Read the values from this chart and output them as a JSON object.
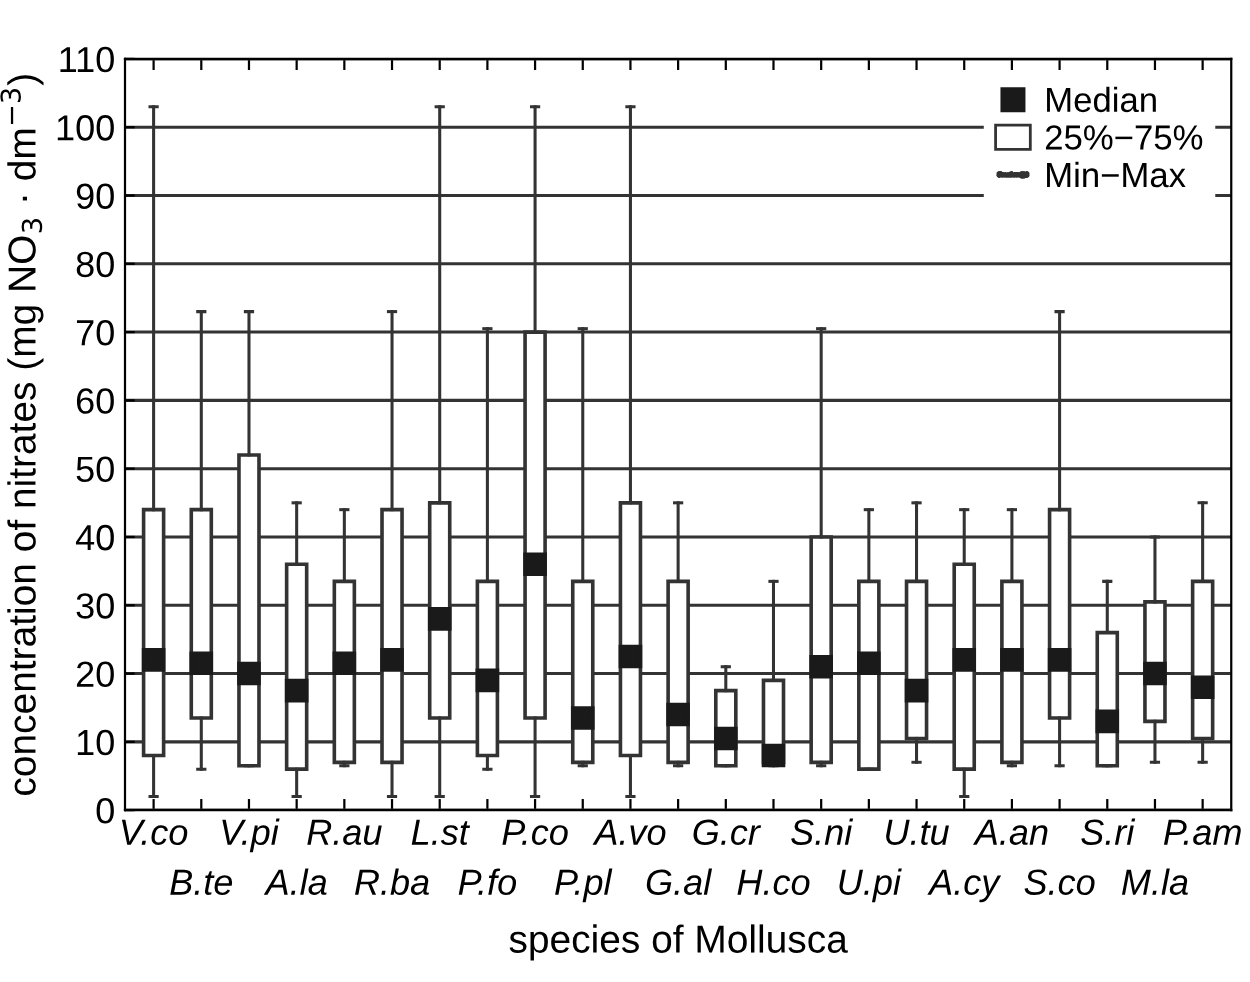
{
  "chart_data": {
    "type": "box",
    "xlabel": "species of Mollusca",
    "ylabel": "concentration of nitrates (mg NO$_{3}$ · dm$^{−3}$)",
    "categories": [
      "V.co",
      "B.te",
      "V.pi",
      "A.la",
      "R.au",
      "R.ba",
      "L.st",
      "P.fo",
      "P.co",
      "P.pl",
      "A.vo",
      "G.al",
      "G.cr",
      "H.co",
      "S.ni",
      "U.pi",
      "U.tu",
      "A.cy",
      "A.an",
      "S.co",
      "S.ri",
      "M.la",
      "P.am"
    ],
    "series": [
      {
        "name": "25%−75%",
        "color": "#ffffff",
        "boxes": [
          {
            "low": 2,
            "q1": 8,
            "median": 22,
            "q3": 44,
            "high": 103
          },
          {
            "low": 6,
            "q1": 13.5,
            "median": 21.5,
            "q3": 44,
            "high": 73
          },
          {
            "low": 6.5,
            "q1": 6.5,
            "median": 20,
            "q3": 52,
            "high": 73
          },
          {
            "low": 2,
            "q1": 6,
            "median": 17.5,
            "q3": 36,
            "high": 45
          },
          {
            "low": 6.5,
            "q1": 7,
            "median": 21.5,
            "q3": 33.5,
            "high": 44
          },
          {
            "low": 2,
            "q1": 7,
            "median": 22,
            "q3": 44,
            "high": 73
          },
          {
            "low": 2,
            "q1": 13.5,
            "median": 28,
            "q3": 45,
            "high": 103
          },
          {
            "low": 6,
            "q1": 8,
            "median": 19,
            "q3": 33.5,
            "high": 70.5
          },
          {
            "low": 2,
            "q1": 13.5,
            "median": 36,
            "q3": 70,
            "high": 103
          },
          {
            "low": 6.5,
            "q1": 7,
            "median": 13.5,
            "q3": 33.5,
            "high": 70.5
          },
          {
            "low": 2,
            "q1": 8,
            "median": 22.5,
            "q3": 45,
            "high": 103
          },
          {
            "low": 6.5,
            "q1": 7,
            "median": 14,
            "q3": 33.5,
            "high": 45
          },
          {
            "low": 6.5,
            "q1": 6.5,
            "median": 10.5,
            "q3": 17.5,
            "high": 21
          },
          {
            "low": 6.5,
            "q1": 7,
            "median": 8,
            "q3": 19,
            "high": 33.5
          },
          {
            "low": 6.5,
            "q1": 7,
            "median": 21,
            "q3": 40,
            "high": 70.5
          },
          {
            "low": 6,
            "q1": 6,
            "median": 21.5,
            "q3": 33.5,
            "high": 44
          },
          {
            "low": 7,
            "q1": 10.5,
            "median": 17.5,
            "q3": 33.5,
            "high": 45
          },
          {
            "low": 2,
            "q1": 6,
            "median": 22,
            "q3": 36,
            "high": 44
          },
          {
            "low": 6.5,
            "q1": 7,
            "median": 22,
            "q3": 33.5,
            "high": 44
          },
          {
            "low": 6.5,
            "q1": 13.5,
            "median": 22,
            "q3": 44,
            "high": 73
          },
          {
            "low": 6.5,
            "q1": 6.5,
            "median": 13,
            "q3": 26,
            "high": 33.5
          },
          {
            "low": 7,
            "q1": 13,
            "median": 20,
            "q3": 30.5,
            "high": 40
          },
          {
            "low": 7,
            "q1": 10.5,
            "median": 18,
            "q3": 33.5,
            "high": 45
          }
        ]
      }
    ],
    "ylim": [
      0,
      110
    ],
    "yticks": [
      0,
      10,
      20,
      30,
      40,
      50,
      60,
      70,
      80,
      90,
      100,
      110
    ],
    "grid": "y",
    "legend": "top right",
    "annotations": [
      "Median",
      "Min−Max"
    ]
  }
}
